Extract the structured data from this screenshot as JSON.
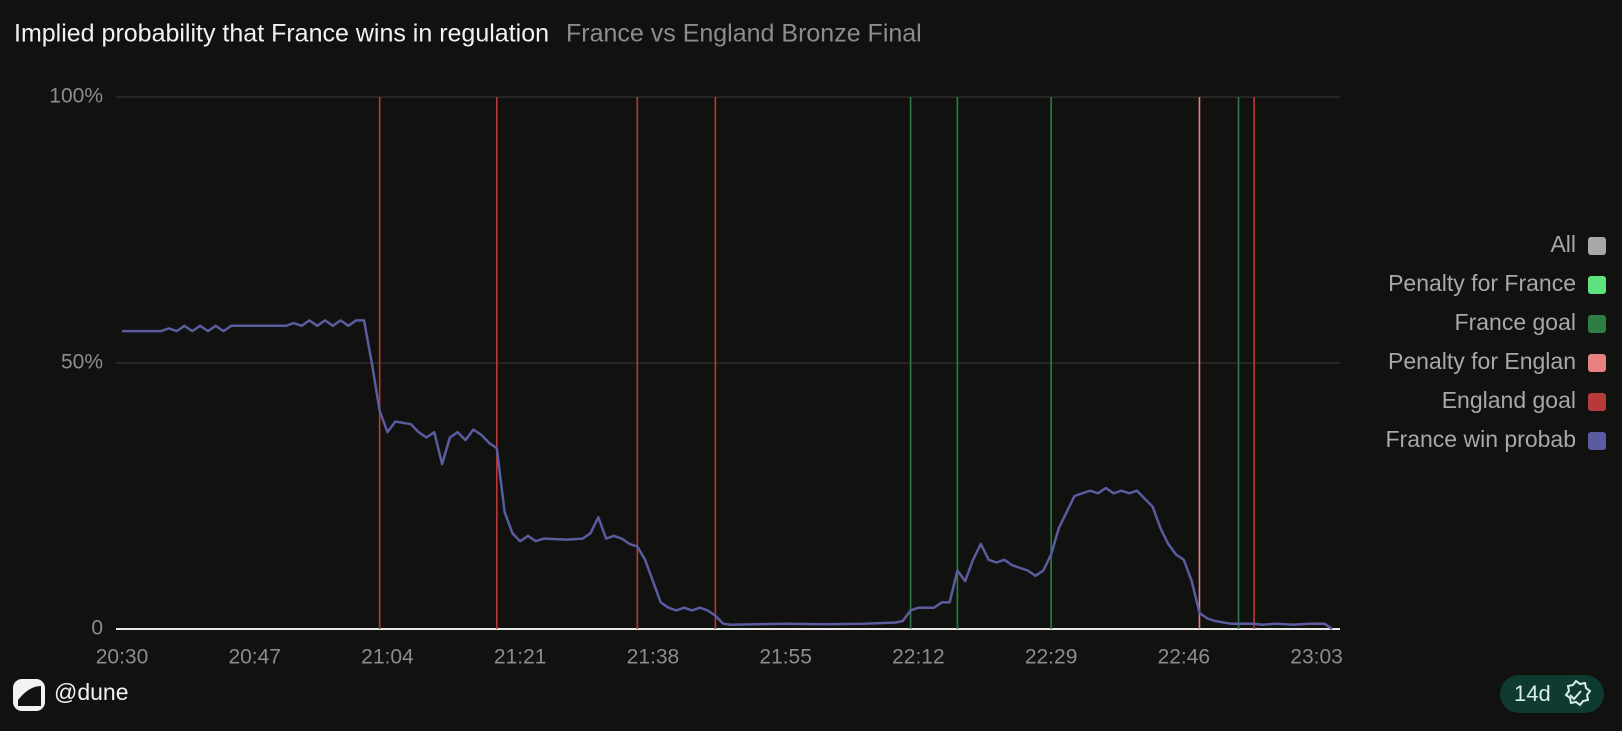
{
  "chart_data": {
    "type": "line",
    "title": "Implied probability that France wins in regulation",
    "subtitle": "France vs England Bronze Final",
    "xlim": [
      "20:30",
      "23:06"
    ],
    "xticks": [
      "20:30",
      "20:47",
      "21:04",
      "21:21",
      "21:38",
      "21:55",
      "22:12",
      "22:29",
      "22:46",
      "23:03"
    ],
    "ylim": [
      0,
      100
    ],
    "yticks": [
      {
        "value": 0,
        "label": "0"
      },
      {
        "value": 50,
        "label": "50%"
      },
      {
        "value": 100,
        "label": "100%"
      }
    ],
    "grid": true,
    "legend_toggle": {
      "name": "All",
      "color": "#a8a8a8"
    },
    "series": [
      {
        "name": "Penalty for France",
        "type": "vline",
        "color": "#5ee27f",
        "x": []
      },
      {
        "name": "France goal",
        "type": "vline",
        "color": "#2f7d43",
        "x": [
          "22:11",
          "22:17",
          "22:29",
          "22:53"
        ]
      },
      {
        "name": "Penalty for Englan",
        "type": "vline",
        "color": "#e98080",
        "x": [
          "22:48"
        ]
      },
      {
        "name": "England goal",
        "type": "vline",
        "color": "#b8393a",
        "x": [
          "21:03",
          "21:18",
          "21:36",
          "21:46",
          "22:55"
        ]
      },
      {
        "name": "France win probab",
        "type": "line",
        "color": "#5b5ba0",
        "x": [
          "20:30",
          "20:33",
          "20:35",
          "20:36",
          "20:37",
          "20:38",
          "20:39",
          "20:40",
          "20:41",
          "20:42",
          "20:43",
          "20:44",
          "20:45",
          "20:48",
          "20:51",
          "20:52",
          "20:53",
          "20:54",
          "20:55",
          "20:56",
          "20:57",
          "20:58",
          "20:59",
          "21:00",
          "21:01",
          "21:02",
          "21:03",
          "21:04",
          "21:05",
          "21:07",
          "21:08",
          "21:09",
          "21:10",
          "21:11",
          "21:12",
          "21:13",
          "21:14",
          "21:15",
          "21:16",
          "21:17",
          "21:18",
          "21:19",
          "21:20",
          "21:21",
          "21:22",
          "21:23",
          "21:24",
          "21:27",
          "21:29",
          "21:30",
          "21:31",
          "21:32",
          "21:33",
          "21:34",
          "21:35",
          "21:36",
          "21:37",
          "21:38",
          "21:39",
          "21:40",
          "21:41",
          "21:42",
          "21:43",
          "21:44",
          "21:45",
          "21:46",
          "21:47",
          "21:48",
          "21:55",
          "22:00",
          "22:05",
          "22:09",
          "22:10",
          "22:11",
          "22:12",
          "22:14",
          "22:15",
          "22:16",
          "22:17",
          "22:18",
          "22:19",
          "22:20",
          "22:21",
          "22:22",
          "22:23",
          "22:24",
          "22:26",
          "22:27",
          "22:28",
          "22:29",
          "22:30",
          "22:31",
          "22:32",
          "22:33",
          "22:34",
          "22:35",
          "22:36",
          "22:37",
          "22:38",
          "22:39",
          "22:40",
          "22:41",
          "22:42",
          "22:43",
          "22:44",
          "22:45",
          "22:46",
          "22:47",
          "22:48",
          "22:49",
          "22:50",
          "22:52",
          "22:55",
          "22:56",
          "22:58",
          "23:00",
          "23:02",
          "23:04",
          "23:05"
        ],
        "values": [
          56,
          56,
          56,
          56.5,
          56,
          57,
          56,
          57,
          56,
          57,
          56,
          57,
          57,
          57,
          57,
          57.5,
          57,
          58,
          57,
          58,
          57,
          58,
          57,
          58,
          58,
          50,
          41,
          37,
          39,
          38.5,
          37,
          36,
          37,
          31,
          36,
          37,
          35.5,
          37.5,
          36.5,
          35,
          34,
          22,
          18,
          16.5,
          17.5,
          16.5,
          17,
          16.8,
          17,
          18,
          21,
          17,
          17.5,
          17,
          16,
          15.5,
          13,
          9,
          5,
          4,
          3.5,
          4,
          3.5,
          4,
          3.5,
          2.5,
          1,
          0.8,
          1,
          0.9,
          1,
          1.2,
          1.5,
          3.5,
          4,
          4,
          5,
          5,
          11,
          9,
          13,
          16,
          13,
          12.5,
          13,
          12,
          11,
          10,
          11,
          14,
          19,
          22,
          25,
          25.5,
          26,
          25.5,
          26.5,
          25.5,
          26,
          25.5,
          26,
          24.5,
          23,
          19,
          16,
          14,
          13,
          9,
          3,
          2,
          1.5,
          1,
          1,
          0.8,
          1,
          0.8,
          1,
          1,
          0
        ]
      }
    ]
  },
  "footer": {
    "brand": "@dune",
    "badge": "14d"
  }
}
